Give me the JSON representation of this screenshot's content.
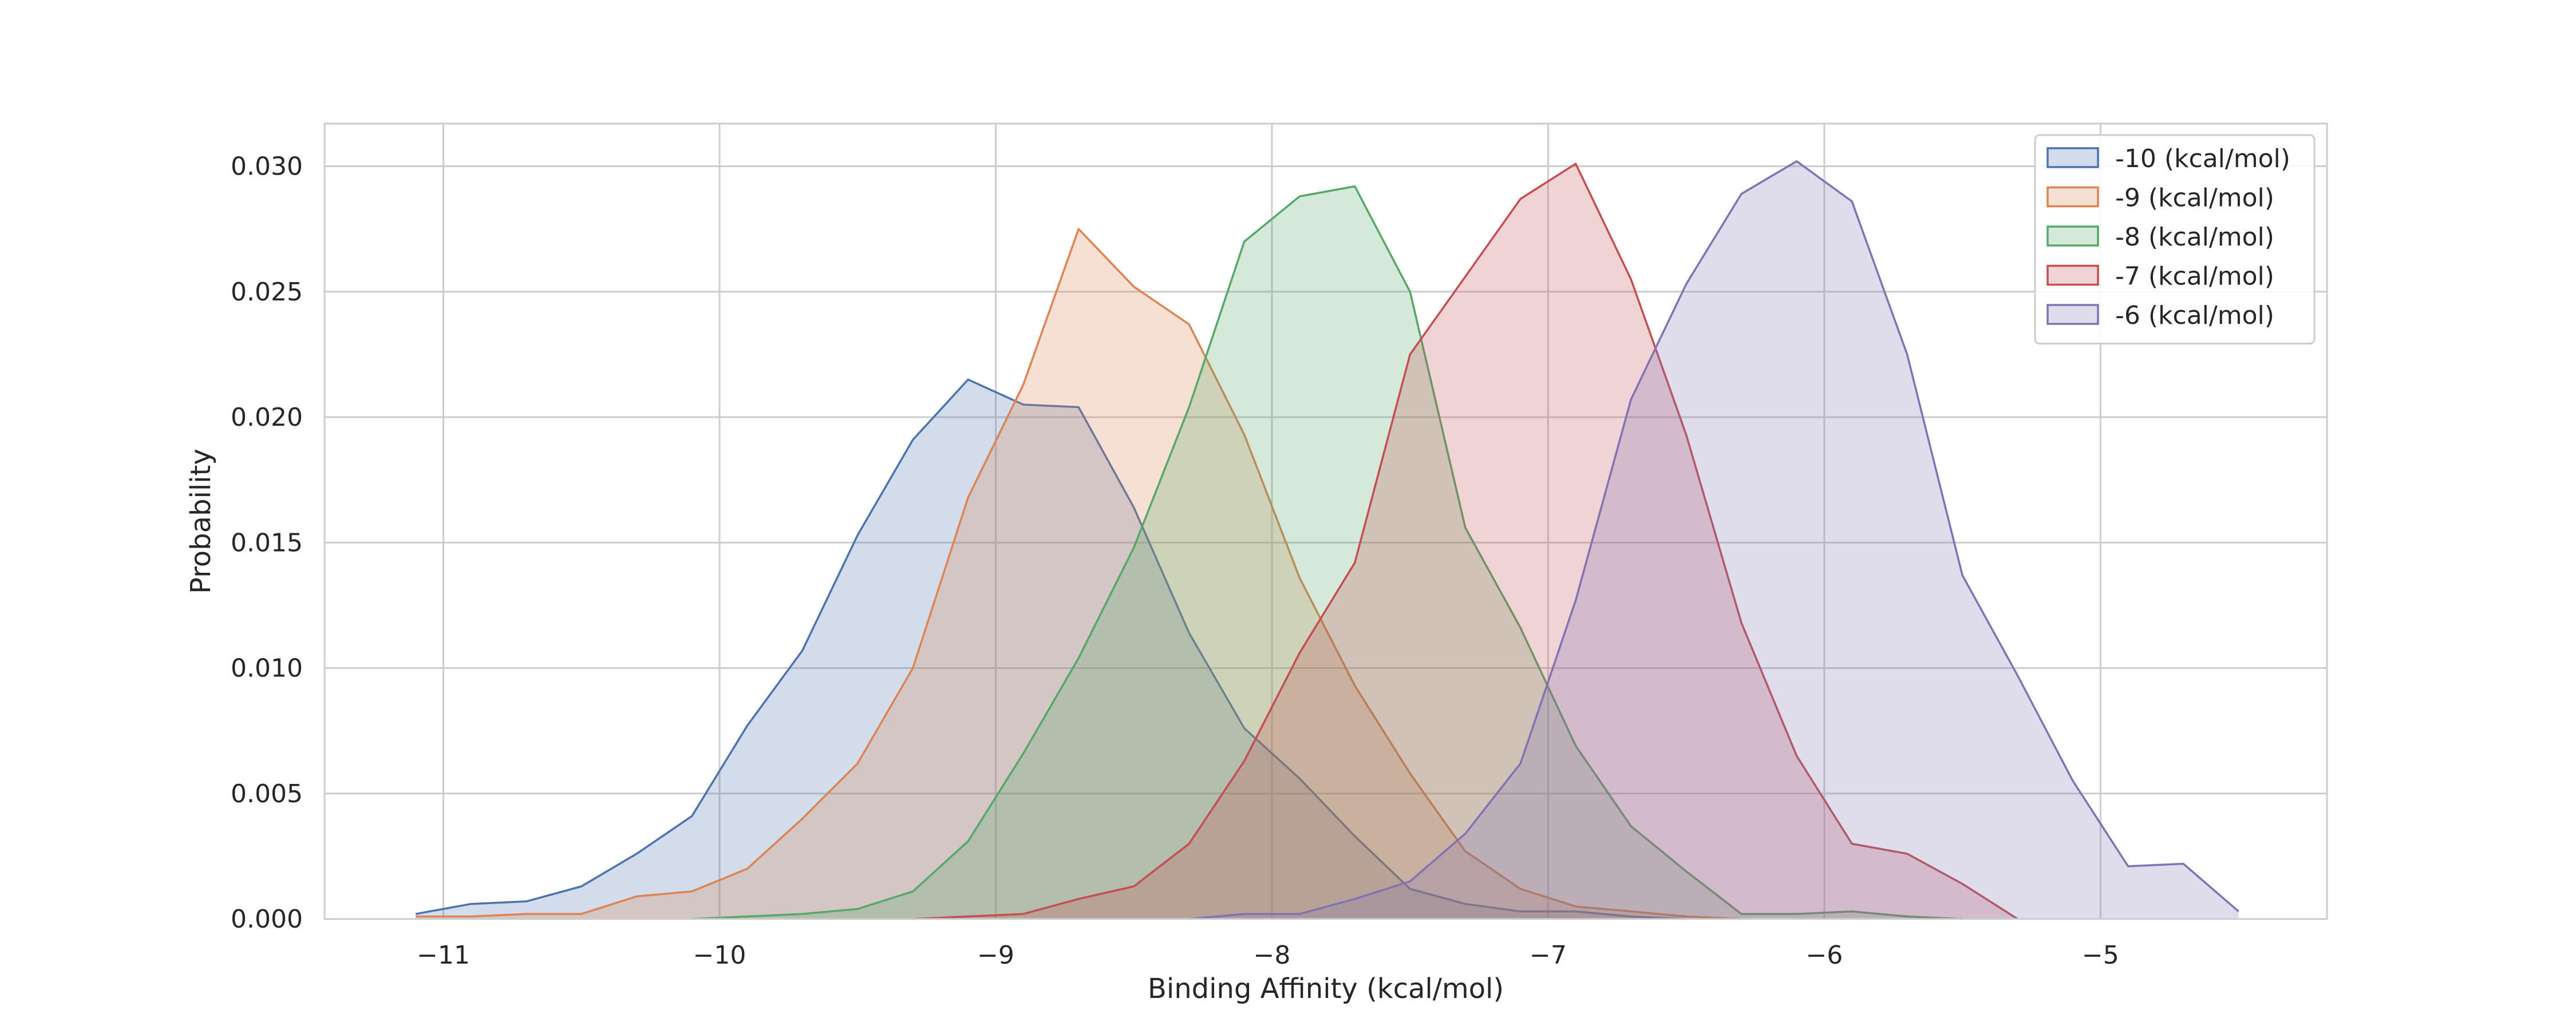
{
  "chart_data": {
    "type": "area",
    "xlabel": "Binding Affinity (kcal/mol)",
    "ylabel": "Probability",
    "xlim": [
      -11.43,
      -4.18
    ],
    "ylim": [
      0,
      0.0317
    ],
    "xticks": [
      -11,
      -10,
      -9,
      -8,
      -7,
      -6,
      -5
    ],
    "xtick_labels": [
      "−11",
      "−10",
      "−9",
      "−8",
      "−7",
      "−6",
      "−5"
    ],
    "yticks": [
      0,
      0.005,
      0.01,
      0.015,
      0.02,
      0.025,
      0.03
    ],
    "ytick_labels": [
      "0.000",
      "0.005",
      "0.010",
      "0.015",
      "0.020",
      "0.025",
      "0.030"
    ],
    "grid": true,
    "legend_position": "top-right",
    "fill_opacity": 0.25,
    "series": [
      {
        "name": "-10 (kcal/mol)",
        "color": "#4C72B0",
        "x": [
          -11.1,
          -10.9,
          -10.7,
          -10.5,
          -10.3,
          -10.1,
          -9.9,
          -9.7,
          -9.5,
          -9.3,
          -9.1,
          -8.9,
          -8.7,
          -8.5,
          -8.3,
          -8.1,
          -7.9,
          -7.7,
          -7.5,
          -7.3,
          -7.1,
          -6.9,
          -6.7,
          -6.5
        ],
        "y": [
          0.0002,
          0.0006,
          0.0007,
          0.0013,
          0.0026,
          0.0041,
          0.0077,
          0.0107,
          0.0153,
          0.0191,
          0.0215,
          0.0205,
          0.0204,
          0.0164,
          0.0114,
          0.0076,
          0.0056,
          0.0033,
          0.0012,
          0.0006,
          0.0003,
          0.0003,
          0.0001,
          0.0
        ]
      },
      {
        "name": "-9 (kcal/mol)",
        "color": "#DD8452",
        "x": [
          -11.1,
          -10.9,
          -10.7,
          -10.5,
          -10.3,
          -10.1,
          -9.9,
          -9.7,
          -9.5,
          -9.3,
          -9.1,
          -8.9,
          -8.7,
          -8.5,
          -8.3,
          -8.1,
          -7.9,
          -7.7,
          -7.5,
          -7.3,
          -7.1,
          -6.9,
          -6.7,
          -6.5,
          -6.3
        ],
        "y": [
          0.0001,
          0.0001,
          0.0002,
          0.0002,
          0.0009,
          0.0011,
          0.002,
          0.004,
          0.0062,
          0.01,
          0.0168,
          0.0213,
          0.0275,
          0.0252,
          0.0237,
          0.0193,
          0.0136,
          0.0093,
          0.0058,
          0.0027,
          0.0012,
          0.0005,
          0.0003,
          0.0001,
          0.0
        ]
      },
      {
        "name": "-8 (kcal/mol)",
        "color": "#55A868",
        "x": [
          -10.1,
          -9.9,
          -9.7,
          -9.5,
          -9.3,
          -9.1,
          -8.9,
          -8.7,
          -8.5,
          -8.3,
          -8.1,
          -7.9,
          -7.7,
          -7.5,
          -7.3,
          -7.1,
          -6.9,
          -6.7,
          -6.5,
          -6.3,
          -6.1,
          -5.9,
          -5.7,
          -5.5
        ],
        "y": [
          0.0,
          0.0001,
          0.0002,
          0.0004,
          0.0011,
          0.0031,
          0.0066,
          0.0104,
          0.0148,
          0.0204,
          0.027,
          0.0288,
          0.0292,
          0.025,
          0.0156,
          0.0116,
          0.0069,
          0.0037,
          0.0019,
          0.0002,
          0.0002,
          0.0003,
          0.0001,
          0.0
        ]
      },
      {
        "name": "-7 (kcal/mol)",
        "color": "#C44E52",
        "x": [
          -9.3,
          -9.1,
          -8.9,
          -8.7,
          -8.5,
          -8.3,
          -8.1,
          -7.9,
          -7.7,
          -7.5,
          -7.3,
          -7.1,
          -6.9,
          -6.7,
          -6.5,
          -6.3,
          -6.1,
          -5.9,
          -5.7,
          -5.5,
          -5.3
        ],
        "y": [
          0.0,
          0.0001,
          0.0002,
          0.0008,
          0.0013,
          0.003,
          0.0063,
          0.0106,
          0.0142,
          0.0225,
          0.0256,
          0.0287,
          0.0301,
          0.0255,
          0.0193,
          0.0118,
          0.0065,
          0.003,
          0.0026,
          0.0014,
          0.0
        ]
      },
      {
        "name": "-6 (kcal/mol)",
        "color": "#8172B3",
        "x": [
          -8.3,
          -8.1,
          -7.9,
          -7.7,
          -7.5,
          -7.3,
          -7.1,
          -6.9,
          -6.7,
          -6.5,
          -6.3,
          -6.1,
          -5.9,
          -5.7,
          -5.5,
          -5.3,
          -5.1,
          -4.9,
          -4.7,
          -4.5
        ],
        "y": [
          0.0,
          0.0002,
          0.0002,
          0.0008,
          0.0015,
          0.0034,
          0.0062,
          0.0127,
          0.0207,
          0.0253,
          0.0289,
          0.0302,
          0.0286,
          0.0225,
          0.0137,
          0.0097,
          0.0055,
          0.0021,
          0.0022,
          0.0003
        ]
      }
    ]
  }
}
